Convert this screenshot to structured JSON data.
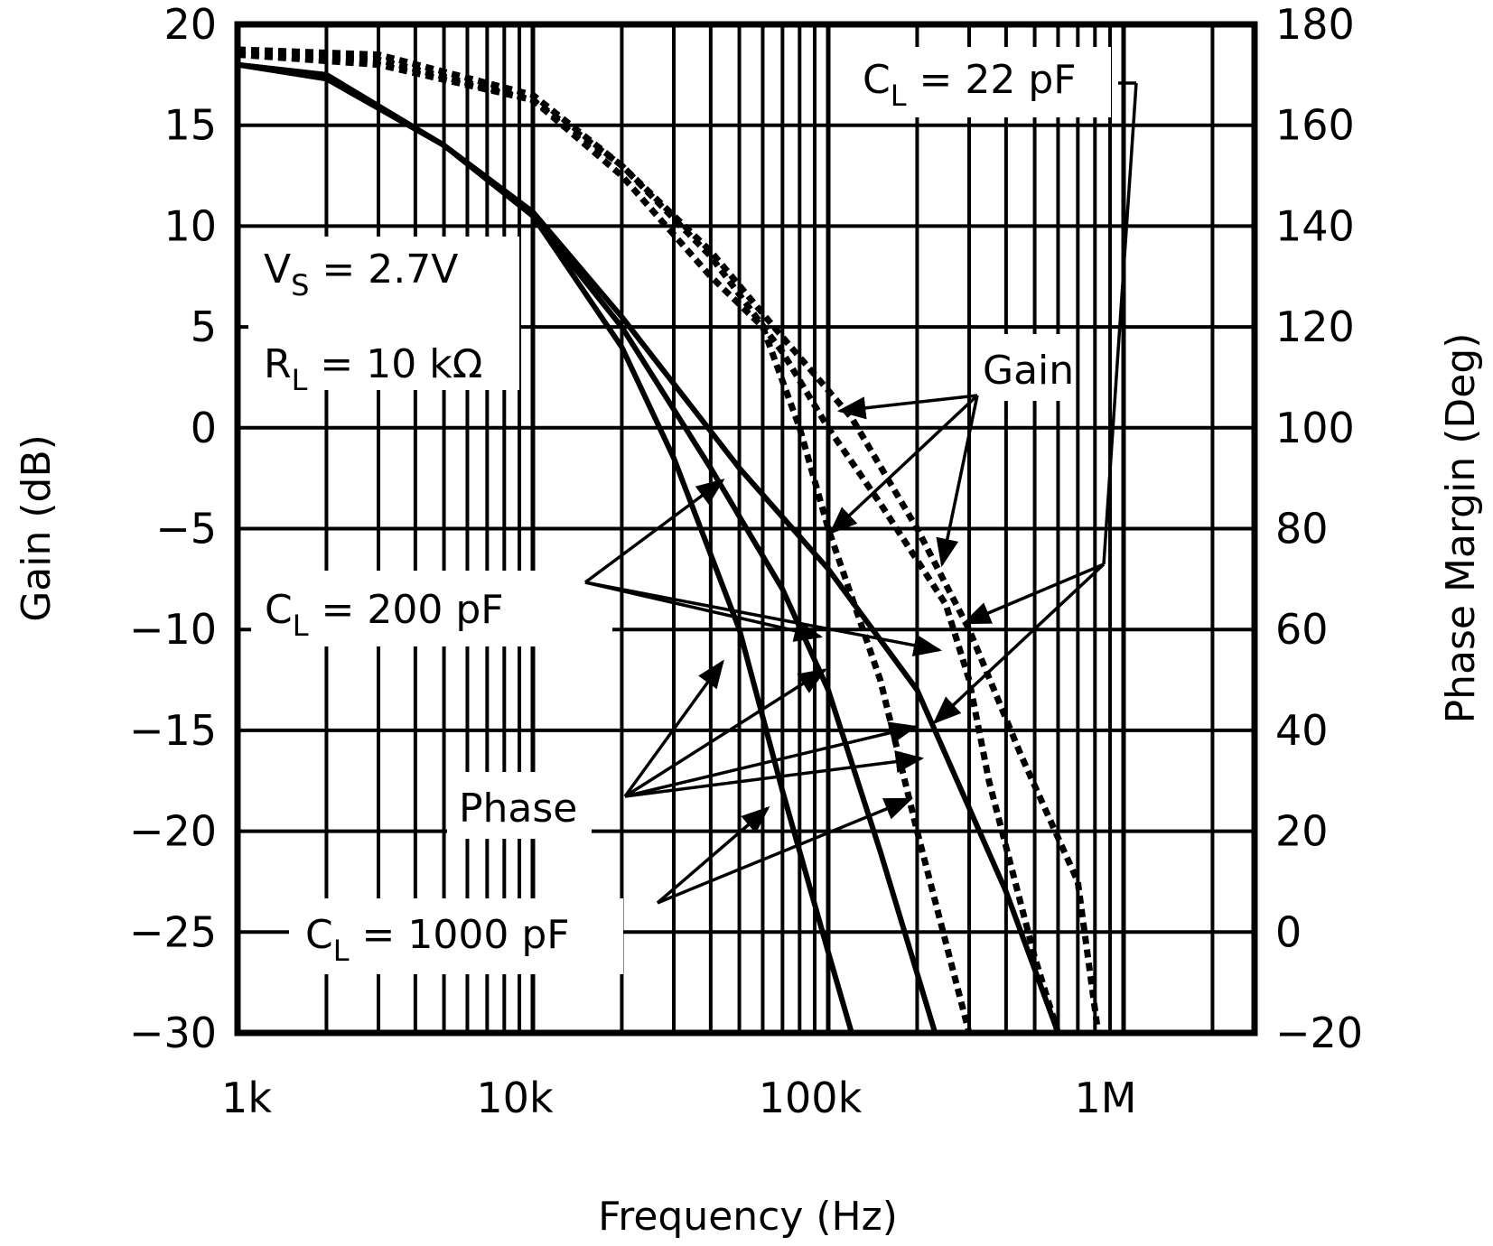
{
  "chart_data": {
    "type": "line",
    "title": "",
    "xlabel": "Frequency (Hz)",
    "ylabel": "Gain (dB)",
    "y2label": "Phase Margin (Deg)",
    "xscale": "log",
    "xlim": [
      1000,
      2760000
    ],
    "ylim": [
      -30,
      20
    ],
    "y2lim": [
      -20,
      180
    ],
    "grid": true,
    "x_ticks": [
      {
        "value": 1000,
        "label": "1k"
      },
      {
        "value": 10000,
        "label": "10k"
      },
      {
        "value": 100000,
        "label": "100k"
      },
      {
        "value": 1000000,
        "label": "1M"
      }
    ],
    "y_ticks": [
      20,
      15,
      10,
      5,
      0,
      -5,
      -10,
      -15,
      -20,
      -25,
      -30
    ],
    "y_tick_labels": [
      "20",
      "15",
      "10",
      "5",
      "0",
      "−5",
      "−10",
      "−15",
      "−20",
      "−25",
      "−30"
    ],
    "y2_ticks": [
      180,
      160,
      140,
      120,
      100,
      80,
      60,
      40,
      20,
      0,
      -20
    ],
    "y2_tick_labels": [
      "180",
      "160",
      "140",
      "120",
      "100",
      "80",
      "60",
      "40",
      "20",
      "0",
      "−20"
    ],
    "conditions": {
      "vs": {
        "main": "V",
        "sub": "S",
        "rest": " = 2.7V"
      },
      "rl": {
        "main": "R",
        "sub": "L",
        "rest": " = 10 kΩ"
      }
    },
    "annotations": {
      "cl22": {
        "main": "C",
        "sub": "L",
        "rest": " = 22 pF"
      },
      "cl200": {
        "main": "C",
        "sub": "L",
        "rest": " = 200 pF"
      },
      "cl1000": {
        "main": "C",
        "sub": "L",
        "rest": " = 1000 pF"
      },
      "gain": "Gain",
      "phase": "Phase"
    },
    "series": [
      {
        "name": "Gain, CL = 1000 pF",
        "axis": "gain",
        "style": "solid",
        "x": [
          1000,
          2000,
          5000,
          10000,
          20000,
          30000,
          50000,
          70000,
          100000,
          120000,
          2760000
        ],
        "y": [
          18,
          17.5,
          14,
          10.5,
          4,
          -1.5,
          -10,
          -18,
          -26,
          -30,
          -30
        ]
      },
      {
        "name": "Gain, CL = 200 pF",
        "axis": "gain",
        "style": "solid",
        "x": [
          1000,
          2000,
          5000,
          10000,
          20000,
          40000,
          70000,
          100000,
          150000,
          230000,
          2760000
        ],
        "y": [
          18,
          17.3,
          14,
          10.5,
          5,
          -2,
          -8,
          -13,
          -21,
          -30,
          -30
        ]
      },
      {
        "name": "Gain, CL = 22 pF",
        "axis": "gain",
        "style": "solid",
        "x": [
          1000,
          2000,
          5000,
          10000,
          20000,
          50000,
          100000,
          200000,
          400000,
          600000,
          2760000
        ],
        "y": [
          18,
          17.5,
          14,
          10.7,
          5.5,
          -2,
          -7,
          -13,
          -23,
          -30,
          -30
        ]
      },
      {
        "name": "Phase, CL = 1000 pF",
        "axis": "phase",
        "style": "dotted",
        "x": [
          1000,
          3000,
          10000,
          20000,
          40000,
          60000,
          80000,
          100000,
          150000,
          200000,
          300000
        ],
        "y": [
          174,
          172,
          165,
          150,
          130,
          120,
          100,
          80,
          50,
          20,
          -20
        ]
      },
      {
        "name": "Phase, CL = 200 pF",
        "axis": "phase",
        "style": "dotted",
        "x": [
          1000,
          3000,
          10000,
          20000,
          40000,
          70000,
          100000,
          150000,
          250000,
          300000,
          350000,
          500000,
          600000
        ],
        "y": [
          174,
          173,
          165,
          152,
          134,
          115,
          100,
          85,
          65,
          50,
          30,
          -5,
          -20
        ]
      },
      {
        "name": "Phase, CL = 22 pF",
        "axis": "phase",
        "style": "dotted",
        "x": [
          1000,
          3000,
          10000,
          20000,
          40000,
          70000,
          120000,
          200000,
          300000,
          450000,
          700000,
          820000
        ],
        "y": [
          175,
          174,
          166,
          152,
          135,
          118,
          102,
          80,
          60,
          35,
          10,
          -20
        ]
      }
    ],
    "legend": "none (callout labels with arrows)"
  }
}
